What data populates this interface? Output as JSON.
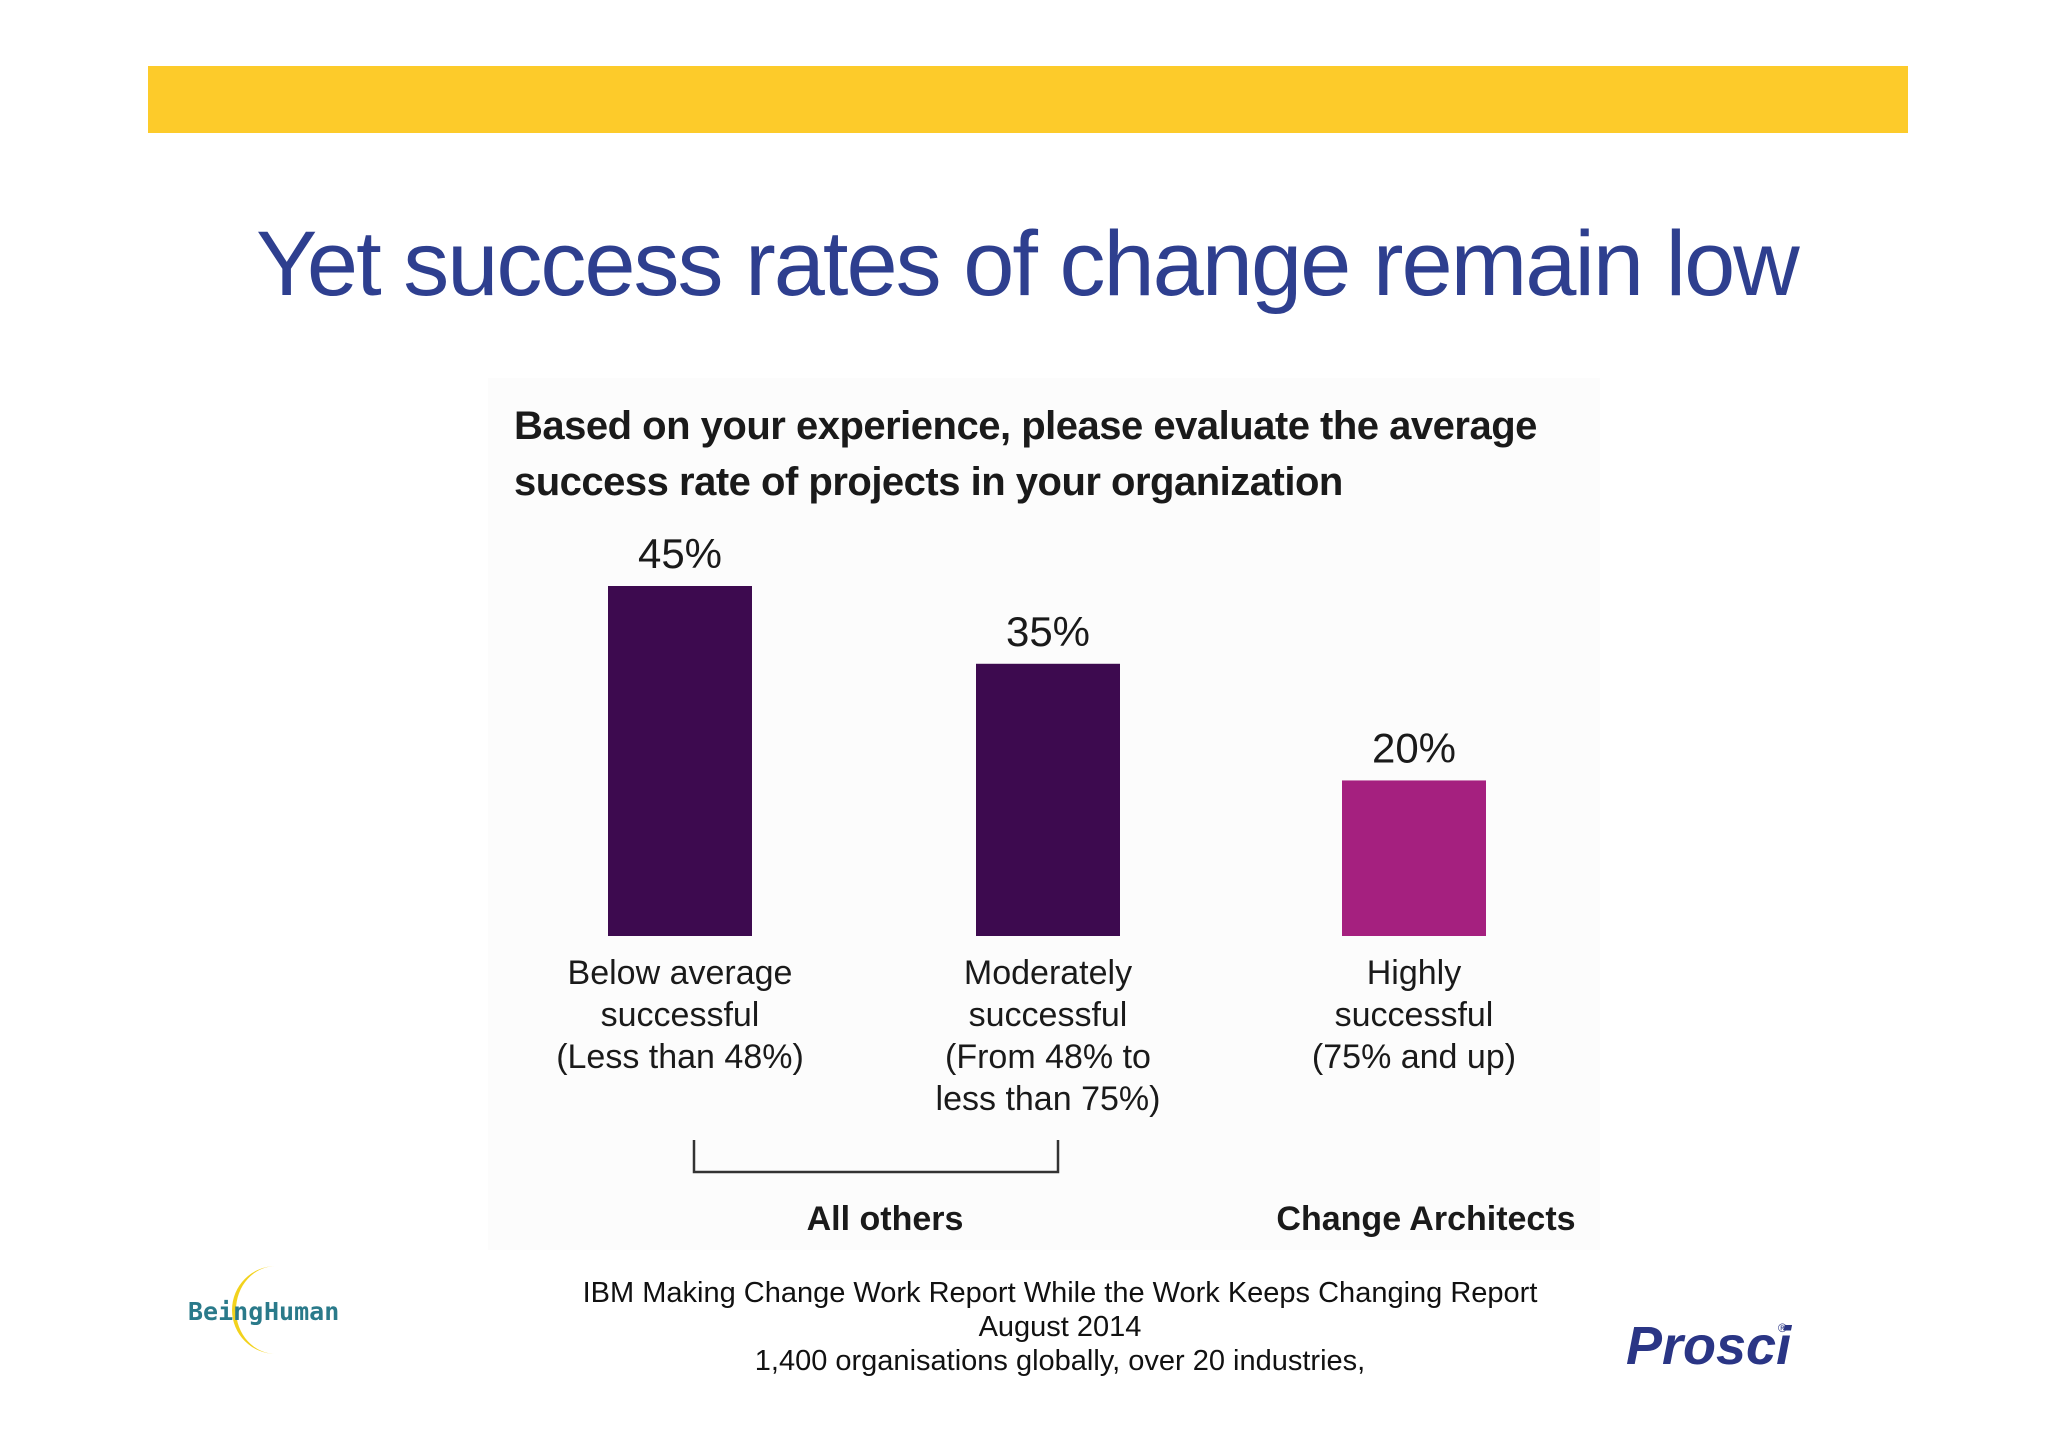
{
  "slide": {
    "title": "Yet success rates of change remain low",
    "accent_color": "#fdcb2a",
    "title_color": "#2e3f8f"
  },
  "chart_data": {
    "type": "bar",
    "title_lines": [
      "Based on your experience, please evaluate the average",
      "success rate of projects in your organization"
    ],
    "categories": [
      [
        "Below average",
        "successful",
        "(Less than 48%)"
      ],
      [
        "Moderately",
        "successful",
        "(From 48% to",
        "less than 75%)"
      ],
      [
        "Highly",
        "successful",
        "(75% and up)"
      ]
    ],
    "values": [
      45,
      35,
      20
    ],
    "value_labels": [
      "45%",
      "35%",
      "20%"
    ],
    "colors": [
      "#3d0a4f",
      "#3d0a4f",
      "#a5207f"
    ],
    "group_labels": [
      {
        "label": "All others",
        "covers": [
          0,
          1
        ]
      },
      {
        "label": "Change Architects",
        "covers": [
          2
        ]
      }
    ],
    "ylim": [
      0,
      45
    ],
    "grid": false,
    "legend": "none"
  },
  "source": {
    "lines": [
      "IBM Making Change Work Report While the Work Keeps Changing Report",
      "August 2014",
      "1,400 organisations globally, over 20 industries,"
    ]
  },
  "logos": {
    "left": {
      "word1": "Being",
      "word2": "Human",
      "icon": "crescent-moon-icon"
    },
    "right": {
      "text": "Prosci",
      "mark": "®",
      "color": "#2a3585"
    }
  }
}
